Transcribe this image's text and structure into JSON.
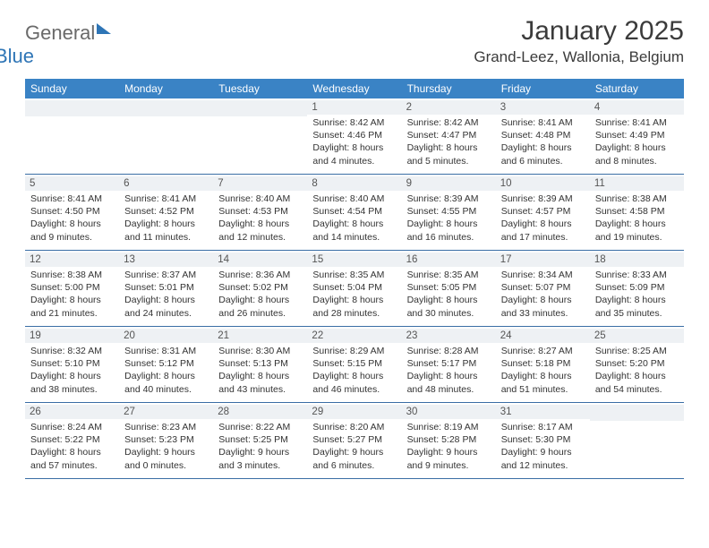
{
  "logo": {
    "general": "General",
    "blue": "Blue"
  },
  "title": "January 2025",
  "location": "Grand-Leez, Wallonia, Belgium",
  "header_bg": "#3a83c5",
  "daynum_bg": "#eef1f4",
  "border_color": "#3a6ea5",
  "text_color": "#333333",
  "days_of_week": [
    "Sunday",
    "Monday",
    "Tuesday",
    "Wednesday",
    "Thursday",
    "Friday",
    "Saturday"
  ],
  "weeks": [
    [
      null,
      null,
      null,
      {
        "n": "1",
        "sr": "8:42 AM",
        "ss": "4:46 PM",
        "dl": "8 hours and 4 minutes."
      },
      {
        "n": "2",
        "sr": "8:42 AM",
        "ss": "4:47 PM",
        "dl": "8 hours and 5 minutes."
      },
      {
        "n": "3",
        "sr": "8:41 AM",
        "ss": "4:48 PM",
        "dl": "8 hours and 6 minutes."
      },
      {
        "n": "4",
        "sr": "8:41 AM",
        "ss": "4:49 PM",
        "dl": "8 hours and 8 minutes."
      }
    ],
    [
      {
        "n": "5",
        "sr": "8:41 AM",
        "ss": "4:50 PM",
        "dl": "8 hours and 9 minutes."
      },
      {
        "n": "6",
        "sr": "8:41 AM",
        "ss": "4:52 PM",
        "dl": "8 hours and 11 minutes."
      },
      {
        "n": "7",
        "sr": "8:40 AM",
        "ss": "4:53 PM",
        "dl": "8 hours and 12 minutes."
      },
      {
        "n": "8",
        "sr": "8:40 AM",
        "ss": "4:54 PM",
        "dl": "8 hours and 14 minutes."
      },
      {
        "n": "9",
        "sr": "8:39 AM",
        "ss": "4:55 PM",
        "dl": "8 hours and 16 minutes."
      },
      {
        "n": "10",
        "sr": "8:39 AM",
        "ss": "4:57 PM",
        "dl": "8 hours and 17 minutes."
      },
      {
        "n": "11",
        "sr": "8:38 AM",
        "ss": "4:58 PM",
        "dl": "8 hours and 19 minutes."
      }
    ],
    [
      {
        "n": "12",
        "sr": "8:38 AM",
        "ss": "5:00 PM",
        "dl": "8 hours and 21 minutes."
      },
      {
        "n": "13",
        "sr": "8:37 AM",
        "ss": "5:01 PM",
        "dl": "8 hours and 24 minutes."
      },
      {
        "n": "14",
        "sr": "8:36 AM",
        "ss": "5:02 PM",
        "dl": "8 hours and 26 minutes."
      },
      {
        "n": "15",
        "sr": "8:35 AM",
        "ss": "5:04 PM",
        "dl": "8 hours and 28 minutes."
      },
      {
        "n": "16",
        "sr": "8:35 AM",
        "ss": "5:05 PM",
        "dl": "8 hours and 30 minutes."
      },
      {
        "n": "17",
        "sr": "8:34 AM",
        "ss": "5:07 PM",
        "dl": "8 hours and 33 minutes."
      },
      {
        "n": "18",
        "sr": "8:33 AM",
        "ss": "5:09 PM",
        "dl": "8 hours and 35 minutes."
      }
    ],
    [
      {
        "n": "19",
        "sr": "8:32 AM",
        "ss": "5:10 PM",
        "dl": "8 hours and 38 minutes."
      },
      {
        "n": "20",
        "sr": "8:31 AM",
        "ss": "5:12 PM",
        "dl": "8 hours and 40 minutes."
      },
      {
        "n": "21",
        "sr": "8:30 AM",
        "ss": "5:13 PM",
        "dl": "8 hours and 43 minutes."
      },
      {
        "n": "22",
        "sr": "8:29 AM",
        "ss": "5:15 PM",
        "dl": "8 hours and 46 minutes."
      },
      {
        "n": "23",
        "sr": "8:28 AM",
        "ss": "5:17 PM",
        "dl": "8 hours and 48 minutes."
      },
      {
        "n": "24",
        "sr": "8:27 AM",
        "ss": "5:18 PM",
        "dl": "8 hours and 51 minutes."
      },
      {
        "n": "25",
        "sr": "8:25 AM",
        "ss": "5:20 PM",
        "dl": "8 hours and 54 minutes."
      }
    ],
    [
      {
        "n": "26",
        "sr": "8:24 AM",
        "ss": "5:22 PM",
        "dl": "8 hours and 57 minutes."
      },
      {
        "n": "27",
        "sr": "8:23 AM",
        "ss": "5:23 PM",
        "dl": "9 hours and 0 minutes."
      },
      {
        "n": "28",
        "sr": "8:22 AM",
        "ss": "5:25 PM",
        "dl": "9 hours and 3 minutes."
      },
      {
        "n": "29",
        "sr": "8:20 AM",
        "ss": "5:27 PM",
        "dl": "9 hours and 6 minutes."
      },
      {
        "n": "30",
        "sr": "8:19 AM",
        "ss": "5:28 PM",
        "dl": "9 hours and 9 minutes."
      },
      {
        "n": "31",
        "sr": "8:17 AM",
        "ss": "5:30 PM",
        "dl": "9 hours and 12 minutes."
      },
      null
    ]
  ],
  "labels": {
    "sunrise": "Sunrise:",
    "sunset": "Sunset:",
    "daylight": "Daylight:"
  }
}
